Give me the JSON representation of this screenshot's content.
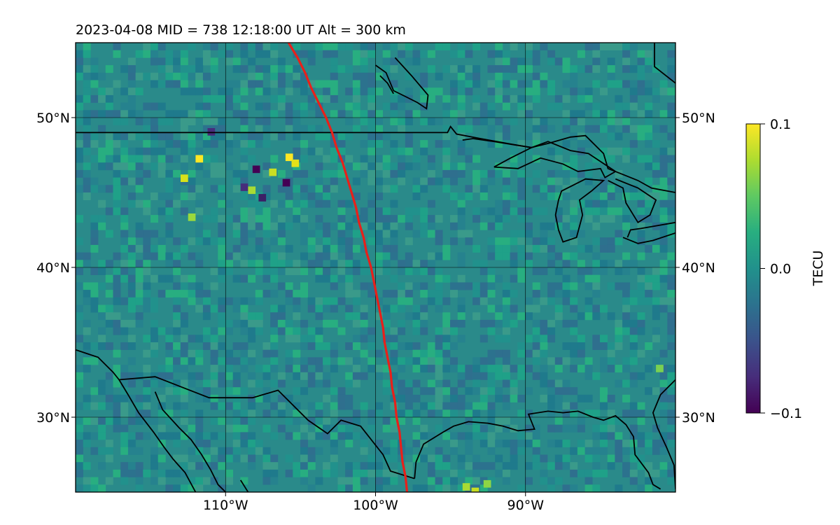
{
  "title": "2023-04-08  MID = 738    12:18:00  UT  Alt = 300 km",
  "map": {
    "lon_range": [
      -120,
      -80
    ],
    "lat_range": [
      25,
      55
    ],
    "lon_ticks": [
      {
        "value": -110,
        "label": "110°W"
      },
      {
        "value": -100,
        "label": "100°W"
      },
      {
        "value": -90,
        "label": "90°W"
      }
    ],
    "lat_ticks": [
      {
        "value": 50,
        "label": "50°N"
      },
      {
        "value": 40,
        "label": "40°N"
      },
      {
        "value": 30,
        "label": "30°N"
      }
    ],
    "background_color": "#2a8a8a",
    "coastline_color": "#000000",
    "eclipse_path_color": "#e8201a",
    "eclipse_path": [
      [
        -105.8,
        55
      ],
      [
        -105.2,
        54
      ],
      [
        -104.7,
        53
      ],
      [
        -104.3,
        52
      ],
      [
        -103.8,
        51
      ],
      [
        -103.3,
        50
      ],
      [
        -102.9,
        49
      ],
      [
        -102.6,
        48
      ],
      [
        -102.2,
        47
      ],
      [
        -101.9,
        46
      ],
      [
        -101.6,
        45
      ],
      [
        -101.3,
        44
      ],
      [
        -101.1,
        43
      ],
      [
        -100.8,
        42
      ],
      [
        -100.6,
        41
      ],
      [
        -100.3,
        40
      ],
      [
        -100.1,
        39
      ],
      [
        -99.9,
        38
      ],
      [
        -99.7,
        37
      ],
      [
        -99.5,
        36
      ],
      [
        -99.4,
        35
      ],
      [
        -99.2,
        34
      ],
      [
        -99.0,
        33
      ],
      [
        -98.9,
        32
      ],
      [
        -98.7,
        31
      ],
      [
        -98.6,
        30
      ],
      [
        -98.4,
        29
      ],
      [
        -98.3,
        28
      ],
      [
        -98.2,
        27
      ],
      [
        -98.0,
        26
      ],
      [
        -97.9,
        25
      ]
    ],
    "borders": [
      [
        [
          -120,
          49
        ],
        [
          -95.2,
          49
        ],
        [
          -95.0,
          49.4
        ],
        [
          -94.6,
          48.9
        ],
        [
          -93.0,
          48.6
        ],
        [
          -90.8,
          48.2
        ],
        [
          -89.6,
          48.0
        ],
        [
          -88.4,
          48.3
        ],
        [
          -87.0,
          48.7
        ],
        [
          -86.0,
          48.8
        ],
        [
          -84.8,
          47.6
        ],
        [
          -84.5,
          46.6
        ],
        [
          -83.5,
          46.2
        ],
        [
          -82.5,
          45.8
        ],
        [
          -81.6,
          45.3
        ],
        [
          -80.0,
          45.0
        ]
      ],
      [
        [
          -120,
          34.5
        ],
        [
          -118.5,
          34.0
        ],
        [
          -117.5,
          33.0
        ],
        [
          -117.1,
          32.5
        ],
        [
          -114.7,
          32.7
        ],
        [
          -111.1,
          31.3
        ],
        [
          -108.2,
          31.3
        ],
        [
          -106.5,
          31.8
        ],
        [
          -104.5,
          29.8
        ],
        [
          -103.2,
          28.9
        ],
        [
          -102.3,
          29.8
        ],
        [
          -101.0,
          29.4
        ],
        [
          -99.5,
          27.5
        ],
        [
          -99.0,
          26.4
        ],
        [
          -97.4,
          25.9
        ]
      ],
      [
        [
          -94.2,
          48.5
        ],
        [
          -93.5,
          48.6
        ],
        [
          -92.1,
          48.4
        ],
        [
          -89.6,
          48.0
        ]
      ]
    ],
    "coasts": [
      [
        [
          -117.1,
          32.5
        ],
        [
          -116.5,
          31.5
        ],
        [
          -115.8,
          30.3
        ],
        [
          -114.8,
          29.0
        ],
        [
          -114.1,
          28.0
        ],
        [
          -113.5,
          27.2
        ],
        [
          -112.7,
          26.3
        ],
        [
          -112.0,
          25.0
        ]
      ],
      [
        [
          -114.7,
          31.7
        ],
        [
          -114.2,
          30.5
        ],
        [
          -113.1,
          29.3
        ],
        [
          -112.3,
          28.5
        ],
        [
          -111.6,
          27.5
        ],
        [
          -111.0,
          26.5
        ],
        [
          -110.5,
          25.5
        ],
        [
          -110.0,
          25.0
        ]
      ],
      [
        [
          -109.0,
          25.8
        ],
        [
          -108.5,
          25.0
        ]
      ],
      [
        [
          -97.4,
          25.9
        ],
        [
          -97.3,
          27.0
        ],
        [
          -96.8,
          28.2
        ],
        [
          -95.5,
          29.0
        ],
        [
          -94.8,
          29.4
        ],
        [
          -93.8,
          29.7
        ],
        [
          -92.5,
          29.6
        ],
        [
          -91.5,
          29.4
        ],
        [
          -90.5,
          29.1
        ],
        [
          -89.4,
          29.2
        ],
        [
          -89.8,
          30.2
        ],
        [
          -88.5,
          30.4
        ],
        [
          -87.5,
          30.3
        ],
        [
          -86.5,
          30.4
        ],
        [
          -85.5,
          30.0
        ],
        [
          -84.8,
          29.8
        ],
        [
          -84.0,
          30.1
        ],
        [
          -83.3,
          29.5
        ],
        [
          -82.8,
          28.7
        ],
        [
          -82.7,
          27.5
        ],
        [
          -81.8,
          26.3
        ],
        [
          -81.5,
          25.5
        ],
        [
          -81.0,
          25.2
        ]
      ],
      [
        [
          -80.0,
          32.5
        ],
        [
          -81.0,
          31.5
        ],
        [
          -81.5,
          30.3
        ],
        [
          -81.2,
          29.3
        ],
        [
          -80.6,
          28.0
        ],
        [
          -80.1,
          26.8
        ],
        [
          -80.0,
          25.2
        ]
      ],
      [
        [
          -92.1,
          46.7
        ],
        [
          -90.5,
          46.6
        ],
        [
          -89.0,
          47.3
        ],
        [
          -87.5,
          46.9
        ],
        [
          -86.5,
          46.4
        ],
        [
          -85.0,
          46.6
        ],
        [
          -84.7,
          46.0
        ],
        [
          -84.0,
          46.4
        ],
        [
          -85.8,
          47.6
        ],
        [
          -87.0,
          47.8
        ],
        [
          -88.5,
          48.4
        ],
        [
          -89.6,
          48.0
        ],
        [
          -91.0,
          47.3
        ],
        [
          -92.1,
          46.7
        ]
      ],
      [
        [
          -87.8,
          42.5
        ],
        [
          -87.5,
          41.7
        ],
        [
          -86.6,
          42.0
        ],
        [
          -86.2,
          43.5
        ],
        [
          -86.4,
          44.5
        ],
        [
          -85.6,
          45.1
        ],
        [
          -84.8,
          45.8
        ],
        [
          -86.0,
          45.9
        ],
        [
          -87.6,
          45.1
        ],
        [
          -87.8,
          44.5
        ],
        [
          -88.0,
          43.5
        ],
        [
          -87.8,
          42.5
        ]
      ],
      [
        [
          -84.5,
          45.8
        ],
        [
          -83.5,
          45.3
        ],
        [
          -83.3,
          44.3
        ],
        [
          -82.5,
          43.0
        ],
        [
          -81.7,
          43.5
        ],
        [
          -81.3,
          44.5
        ],
        [
          -82.5,
          45.3
        ],
        [
          -84.0,
          45.9
        ]
      ],
      [
        [
          -83.5,
          42.0
        ],
        [
          -82.5,
          41.6
        ],
        [
          -81.5,
          41.8
        ],
        [
          -80.0,
          42.3
        ]
      ],
      [
        [
          -83.2,
          42.0
        ],
        [
          -83.0,
          42.5
        ],
        [
          -82.3,
          42.6
        ],
        [
          -80.0,
          43.0
        ]
      ],
      [
        [
          -79.5,
          43.0
        ],
        [
          -80.0,
          43.2
        ]
      ],
      [
        [
          -100.0,
          53.5
        ],
        [
          -99.3,
          53.0
        ],
        [
          -98.8,
          51.8
        ],
        [
          -98.0,
          51.4
        ],
        [
          -97.2,
          51.0
        ],
        [
          -96.6,
          50.6
        ],
        [
          -96.5,
          51.5
        ],
        [
          -97.6,
          52.8
        ],
        [
          -98.7,
          54.0
        ]
      ],
      [
        [
          -99.7,
          52.8
        ],
        [
          -99.2,
          52.3
        ],
        [
          -98.8,
          51.6
        ]
      ],
      [
        [
          -81.4,
          55.0
        ],
        [
          -81.4,
          53.4
        ],
        [
          -80.0,
          52.3
        ]
      ]
    ]
  },
  "colorbar": {
    "label": "TECU",
    "min": -0.1,
    "max": 0.1,
    "ticks": [
      {
        "value": 0.1,
        "label": "0.1"
      },
      {
        "value": 0.0,
        "label": "0.0"
      },
      {
        "value": -0.1,
        "label": "−0.1"
      }
    ],
    "colormap": "viridis"
  }
}
